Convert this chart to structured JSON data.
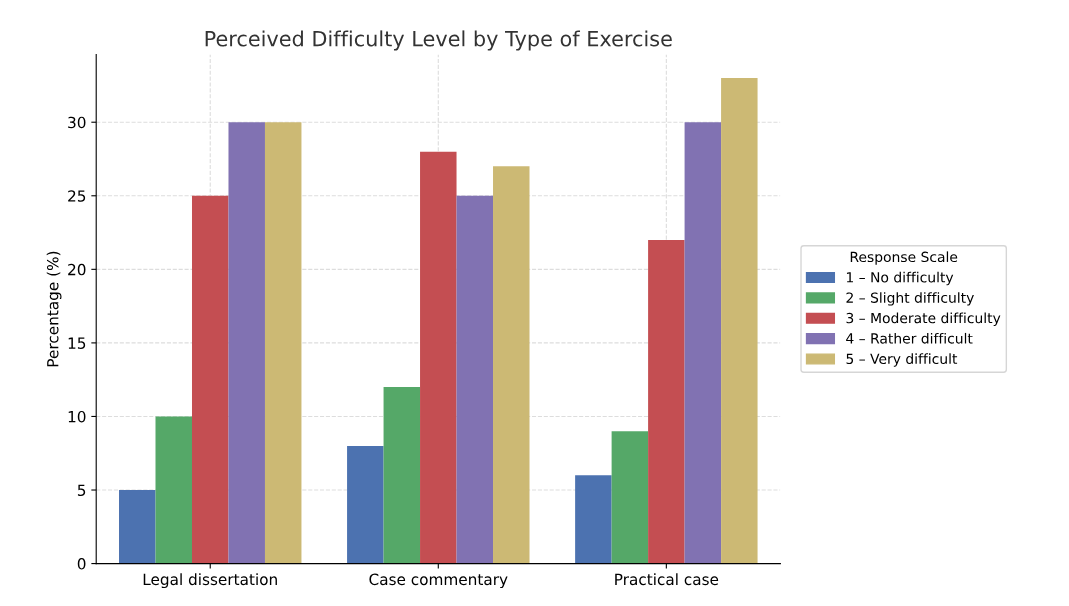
{
  "chart_data": {
    "type": "bar",
    "title": "Perceived Difficulty Level by Type of Exercise",
    "ylabel": "Percentage (%)",
    "legend_title": "Response Scale",
    "categories": [
      "Legal dissertation",
      "Case commentary",
      "Practical case"
    ],
    "series": [
      {
        "name": "1 – No difficulty",
        "color": "#4c72b0",
        "values": [
          5,
          8,
          6
        ]
      },
      {
        "name": "2 – Slight difficulty",
        "color": "#55a868",
        "values": [
          10,
          12,
          9
        ]
      },
      {
        "name": "3 – Moderate difficulty",
        "color": "#c44e52",
        "values": [
          25,
          28,
          22
        ]
      },
      {
        "name": "4 – Rather difficult",
        "color": "#8172b2",
        "values": [
          30,
          25,
          30
        ]
      },
      {
        "name": "5 – Very difficult",
        "color": "#ccb974",
        "values": [
          30,
          27,
          33
        ]
      }
    ],
    "ylim": [
      0,
      34.6
    ],
    "yticks": [
      0,
      5,
      10,
      15,
      20,
      25,
      30
    ],
    "grid": true,
    "legend": "right"
  }
}
